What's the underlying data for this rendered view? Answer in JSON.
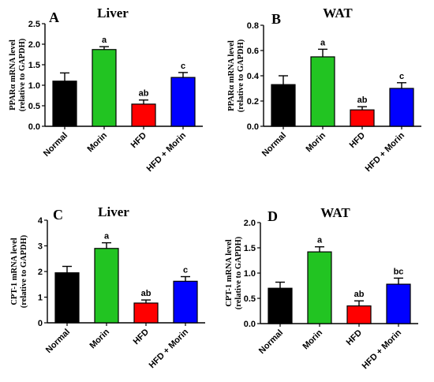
{
  "chart_data": [
    {
      "type": "bar",
      "panel_letter": "A",
      "title": "Liver",
      "ylabel_line1": "PPARα mRNA level",
      "ylabel_line2": "(relative to GAPDH)",
      "categories": [
        "Normal",
        "Morin",
        "HFD",
        "HFD + Morin"
      ],
      "values": [
        1.1,
        1.87,
        0.54,
        1.19
      ],
      "errors": [
        0.2,
        0.07,
        0.1,
        0.12
      ],
      "significance": [
        "",
        "a",
        "ab",
        "c"
      ],
      "bar_colors": [
        "#000000",
        "#22c422",
        "#ff0000",
        "#0000ff"
      ],
      "ylim": [
        0,
        2.5
      ],
      "yticks": [
        "0.0",
        "0.5",
        "1.0",
        "1.5",
        "2.0",
        "2.5"
      ]
    },
    {
      "type": "bar",
      "panel_letter": "B",
      "title": "WAT",
      "ylabel_line1": "PPARα mRNA level",
      "ylabel_line2": "(relative to GAPDH)",
      "categories": [
        "Normal",
        "Morin",
        "HFD",
        "HFD + Morin"
      ],
      "values": [
        0.33,
        0.55,
        0.13,
        0.3
      ],
      "errors": [
        0.07,
        0.06,
        0.025,
        0.045
      ],
      "significance": [
        "",
        "a",
        "ab",
        "c"
      ],
      "bar_colors": [
        "#000000",
        "#22c422",
        "#ff0000",
        "#0000ff"
      ],
      "ylim": [
        0,
        0.8
      ],
      "yticks": [
        "0.0",
        "0.2",
        "0.4",
        "0.6",
        "0.8"
      ]
    },
    {
      "type": "bar",
      "panel_letter": "C",
      "title": "Liver",
      "ylabel_line1": "CPT-1 mRNA level",
      "ylabel_line2": "(relative to GAPDH)",
      "categories": [
        "Normal",
        "Morin",
        "HFD",
        "HFD + Morin"
      ],
      "values": [
        1.95,
        2.9,
        0.77,
        1.62
      ],
      "errors": [
        0.25,
        0.22,
        0.12,
        0.18
      ],
      "significance": [
        "",
        "a",
        "ab",
        "c"
      ],
      "bar_colors": [
        "#000000",
        "#22c422",
        "#ff0000",
        "#0000ff"
      ],
      "ylim": [
        0,
        4
      ],
      "yticks": [
        "0",
        "1",
        "2",
        "3",
        "4"
      ]
    },
    {
      "type": "bar",
      "panel_letter": "D",
      "title": "WAT",
      "ylabel_line1": "CPT-1 mRNA level",
      "ylabel_line2": "(relative to GAPDH)",
      "categories": [
        "Normal",
        "Morin",
        "HFD",
        "HFD + Morin"
      ],
      "values": [
        0.7,
        1.42,
        0.35,
        0.78
      ],
      "errors": [
        0.12,
        0.1,
        0.1,
        0.12
      ],
      "significance": [
        "",
        "a",
        "ab",
        "bc"
      ],
      "bar_colors": [
        "#000000",
        "#22c422",
        "#ff0000",
        "#0000ff"
      ],
      "ylim": [
        0,
        2.0
      ],
      "yticks": [
        "0.0",
        "0.5",
        "1.0",
        "1.5",
        "2.0"
      ]
    }
  ]
}
